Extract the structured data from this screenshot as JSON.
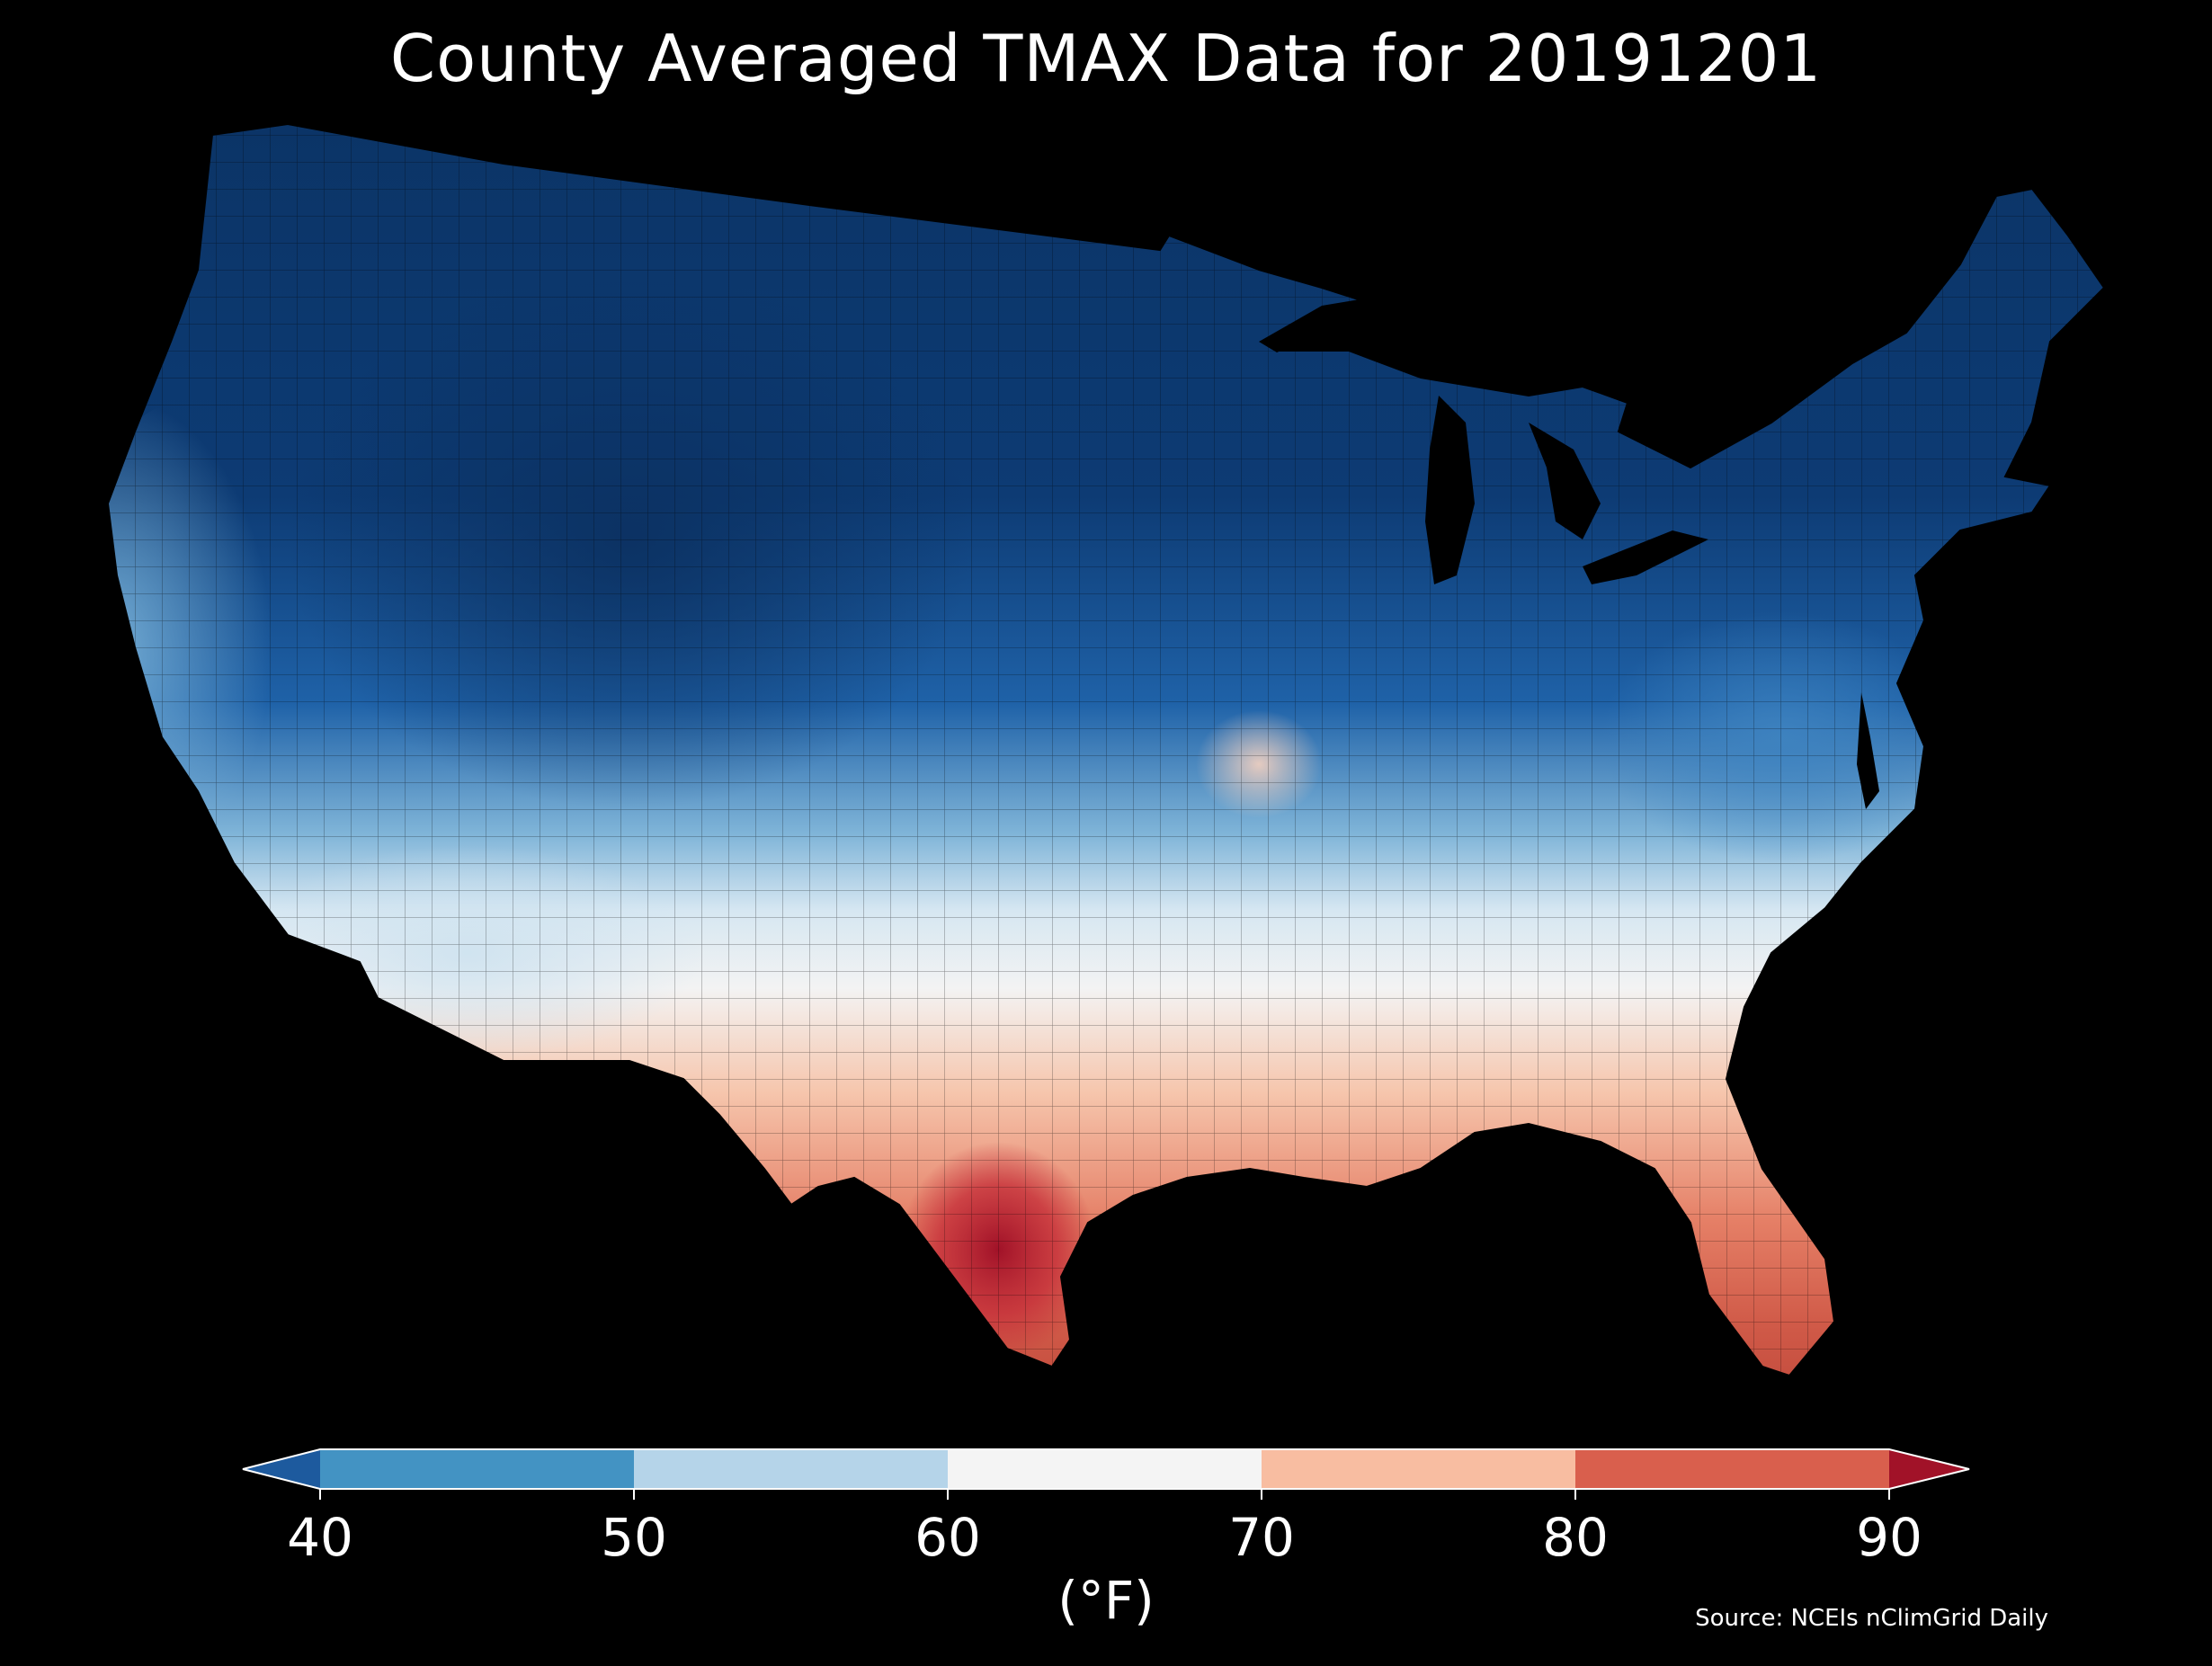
{
  "title": "County Averaged TMAX Data for 20191201",
  "source": "Source: NCEIs nClimGrid Daily",
  "colorbar": {
    "unit_label": "(°F)",
    "ticks": [
      "40",
      "50",
      "60",
      "70",
      "80",
      "90"
    ],
    "bins": [
      {
        "range": "<40",
        "color": "#1d5a9e"
      },
      {
        "range": "40-50",
        "color": "#4393c3"
      },
      {
        "range": "50-60",
        "color": "#b5d4e9"
      },
      {
        "range": "60-70",
        "color": "#f4f4f4"
      },
      {
        "range": "70-80",
        "color": "#f8bda1"
      },
      {
        "range": "80-90",
        "color": "#d95f4d"
      },
      {
        "range": ">90",
        "color": "#a11228"
      }
    ],
    "extend": "both"
  },
  "map": {
    "region": "Contiguous United States",
    "units": "counties",
    "background_color": "#000000",
    "border_color": "#000000"
  }
}
